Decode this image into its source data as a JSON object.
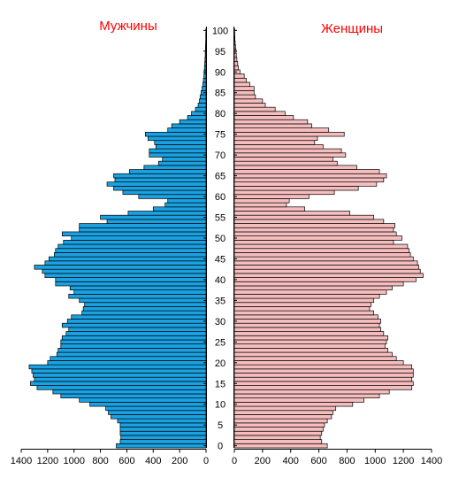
{
  "chart_data": {
    "type": "bar",
    "orientation": "horizontal-pyramid",
    "left_title": "Мужчины",
    "right_title": "Женщины",
    "title_color": "#ff0000",
    "male_color": "#1aa1e1",
    "female_color": "#f5bdbd",
    "ages": [
      0,
      1,
      2,
      3,
      4,
      5,
      6,
      7,
      8,
      9,
      10,
      11,
      12,
      13,
      14,
      15,
      16,
      17,
      18,
      19,
      20,
      21,
      22,
      23,
      24,
      25,
      26,
      27,
      28,
      29,
      30,
      31,
      32,
      33,
      34,
      35,
      36,
      37,
      38,
      39,
      40,
      41,
      42,
      43,
      44,
      45,
      46,
      47,
      48,
      49,
      50,
      51,
      52,
      53,
      54,
      55,
      56,
      57,
      58,
      59,
      60,
      61,
      62,
      63,
      64,
      65,
      66,
      67,
      68,
      69,
      70,
      71,
      72,
      73,
      74,
      75,
      76,
      77,
      78,
      79,
      80,
      81,
      82,
      83,
      84,
      85,
      86,
      87,
      88,
      89,
      90,
      91,
      92,
      93,
      94,
      95,
      96,
      97,
      98,
      99,
      100
    ],
    "age_tick_labels": [
      "0",
      "5",
      "10",
      "15",
      "20",
      "25",
      "30",
      "35",
      "40",
      "45",
      "50",
      "55",
      "60",
      "65",
      "70",
      "75",
      "80",
      "85",
      "90",
      "95",
      "100"
    ],
    "male_axis_ticks": [
      "1400",
      "1200",
      "1000",
      "800",
      "600",
      "400",
      "200",
      "0"
    ],
    "female_axis_ticks": [
      "0",
      "200",
      "400",
      "600",
      "800",
      "1000",
      "1200",
      "1400"
    ],
    "male_xlim": [
      0,
      1400
    ],
    "female_xlim": [
      0,
      1400
    ],
    "male_values": [
      680,
      650,
      645,
      650,
      650,
      650,
      670,
      720,
      740,
      760,
      880,
      960,
      1100,
      1160,
      1280,
      1330,
      1300,
      1310,
      1320,
      1340,
      1200,
      1180,
      1130,
      1120,
      1100,
      1100,
      1090,
      1060,
      1040,
      1090,
      1050,
      1020,
      940,
      930,
      920,
      960,
      1040,
      1000,
      1030,
      1140,
      1140,
      1220,
      1240,
      1300,
      1220,
      1190,
      1150,
      1140,
      1120,
      1080,
      1020,
      1090,
      960,
      960,
      750,
      800,
      590,
      400,
      310,
      290,
      510,
      630,
      700,
      750,
      690,
      700,
      580,
      470,
      360,
      330,
      430,
      430,
      380,
      390,
      440,
      460,
      290,
      260,
      200,
      140,
      110,
      80,
      60,
      50,
      45,
      38,
      30,
      24,
      20,
      16,
      14,
      12,
      10,
      8,
      6,
      5,
      4,
      3,
      2,
      2,
      1
    ],
    "female_values": [
      660,
      620,
      610,
      620,
      630,
      640,
      660,
      690,
      700,
      720,
      840,
      920,
      1030,
      1100,
      1260,
      1270,
      1260,
      1270,
      1270,
      1260,
      1200,
      1150,
      1120,
      1090,
      1070,
      1080,
      1090,
      1060,
      1040,
      1030,
      1040,
      1020,
      990,
      960,
      970,
      990,
      1030,
      1080,
      1120,
      1200,
      1290,
      1340,
      1320,
      1310,
      1300,
      1270,
      1250,
      1240,
      1230,
      1130,
      1190,
      1150,
      1130,
      1140,
      1060,
      990,
      820,
      500,
      370,
      390,
      530,
      710,
      880,
      1010,
      1060,
      1080,
      1030,
      870,
      730,
      700,
      790,
      760,
      630,
      570,
      590,
      780,
      670,
      550,
      520,
      420,
      360,
      290,
      220,
      200,
      150,
      140,
      140,
      110,
      85,
      70,
      40,
      28,
      24,
      18,
      14,
      12,
      9,
      6,
      4,
      3,
      2
    ]
  }
}
